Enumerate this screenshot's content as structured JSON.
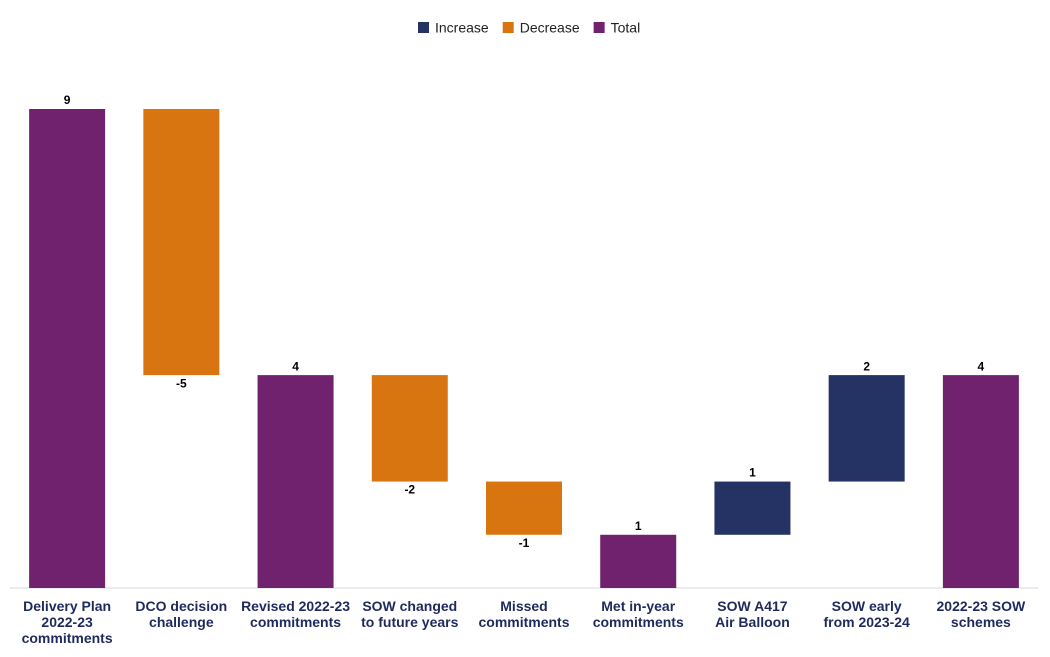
{
  "chart_data": {
    "type": "waterfall",
    "categories": [
      [
        "Delivery Plan",
        "2022-23",
        "commitments"
      ],
      [
        "DCO decision",
        "challenge"
      ],
      [
        "Revised 2022-23",
        "commitments"
      ],
      [
        "SOW changed",
        "to future years"
      ],
      [
        "Missed",
        "commitments"
      ],
      [
        "Met in-year",
        "commitments"
      ],
      [
        "SOW A417",
        "Air Balloon"
      ],
      [
        "SOW early",
        "from 2023-24"
      ],
      [
        "2022-23 SOW",
        "schemes"
      ]
    ],
    "series": [
      {
        "name": "Increase",
        "color": "#253264",
        "values": [
          null,
          null,
          null,
          null,
          null,
          null,
          1,
          2,
          null
        ]
      },
      {
        "name": "Decrease",
        "color": "#d97511",
        "values": [
          null,
          -5,
          null,
          -2,
          -1,
          null,
          null,
          null,
          null
        ]
      },
      {
        "name": "Total",
        "color": "#70226e",
        "values": [
          9,
          null,
          4,
          null,
          null,
          1,
          null,
          null,
          4
        ]
      }
    ],
    "ylim": [
      0,
      9
    ],
    "legend": "top"
  }
}
